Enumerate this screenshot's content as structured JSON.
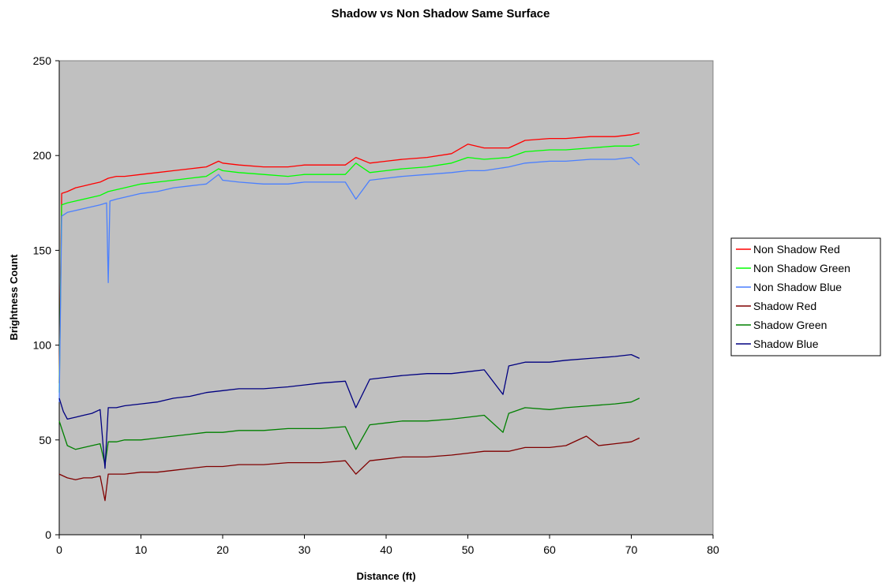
{
  "chart_data": {
    "type": "line",
    "title": "Shadow vs Non Shadow Same Surface",
    "xlabel": "Distance (ft)",
    "ylabel": "Brightness Count",
    "xlim": [
      0,
      80
    ],
    "ylim": [
      0,
      250
    ],
    "x_ticks": [
      0,
      10,
      20,
      30,
      40,
      50,
      60,
      70,
      80
    ],
    "y_ticks": [
      0,
      50,
      100,
      150,
      200,
      250
    ],
    "x_tick_labels": [
      "0",
      "10",
      "20",
      "30",
      "40",
      "50",
      "60",
      "70",
      "80"
    ],
    "y_tick_labels": [
      "0",
      "50",
      "100",
      "150",
      "200",
      "250"
    ],
    "grid": false,
    "plot_background": "#C0C0C0",
    "legend_position": "right",
    "series": [
      {
        "name": "Non Shadow Red",
        "color": "#FF0000",
        "x": [
          0,
          0.3,
          1,
          2,
          3,
          4,
          5,
          6,
          7,
          8,
          10,
          12,
          14,
          16,
          18,
          19.5,
          20,
          22,
          25,
          28,
          30,
          32,
          35,
          36.3,
          38,
          40,
          42,
          45,
          48,
          50,
          52,
          55,
          57,
          60,
          62,
          65,
          68,
          70,
          71
        ],
        "y": [
          80,
          180,
          181,
          183,
          184,
          185,
          186,
          188,
          189,
          189,
          190,
          191,
          192,
          193,
          194,
          197,
          196,
          195,
          194,
          194,
          195,
          195,
          195,
          199,
          196,
          197,
          198,
          199,
          201,
          206,
          204,
          204,
          208,
          209,
          209,
          210,
          210,
          211,
          212
        ]
      },
      {
        "name": "Non Shadow Green",
        "color": "#00FF00",
        "x": [
          0,
          0.3,
          1,
          2,
          3,
          4,
          5,
          6,
          7,
          8,
          10,
          12,
          14,
          16,
          18,
          19.5,
          20,
          22,
          25,
          28,
          30,
          32,
          35,
          36.3,
          38,
          40,
          42,
          45,
          48,
          50,
          52,
          55,
          57,
          60,
          62,
          65,
          68,
          70,
          71
        ],
        "y": [
          75,
          174,
          175,
          176,
          177,
          178,
          179,
          181,
          182,
          183,
          185,
          186,
          187,
          188,
          189,
          193,
          192,
          191,
          190,
          189,
          190,
          190,
          190,
          196,
          191,
          192,
          193,
          194,
          196,
          199,
          198,
          199,
          202,
          203,
          203,
          204,
          205,
          205,
          206
        ]
      },
      {
        "name": "Non Shadow Blue",
        "color": "#4A7FFF",
        "x": [
          0,
          0.3,
          1,
          2,
          3,
          4,
          5,
          5.8,
          6,
          6.2,
          7,
          8,
          10,
          12,
          14,
          16,
          18,
          19.5,
          20,
          22,
          25,
          28,
          30,
          32,
          35,
          36.3,
          38,
          40,
          42,
          45,
          48,
          50,
          52,
          55,
          57,
          60,
          62,
          65,
          68,
          70,
          71
        ],
        "y": [
          70,
          168,
          170,
          171,
          172,
          173,
          174,
          175,
          133,
          176,
          177,
          178,
          180,
          181,
          183,
          184,
          185,
          190,
          187,
          186,
          185,
          185,
          186,
          186,
          186,
          177,
          187,
          188,
          189,
          190,
          191,
          192,
          192,
          194,
          196,
          197,
          197,
          198,
          198,
          199,
          195
        ]
      },
      {
        "name": "Shadow Red",
        "color": "#800000",
        "x": [
          0,
          1,
          2,
          3,
          4,
          5,
          5.6,
          6,
          7,
          8,
          10,
          12,
          14,
          16,
          18,
          20,
          22,
          25,
          28,
          30,
          32,
          35,
          36.3,
          38,
          40,
          42,
          45,
          48,
          50,
          52,
          55,
          57,
          60,
          62,
          64.5,
          66,
          68,
          70,
          71
        ],
        "y": [
          32,
          30,
          29,
          30,
          30,
          31,
          18,
          32,
          32,
          32,
          33,
          33,
          34,
          35,
          36,
          36,
          37,
          37,
          38,
          38,
          38,
          39,
          32,
          39,
          40,
          41,
          41,
          42,
          43,
          44,
          44,
          46,
          46,
          47,
          52,
          47,
          48,
          49,
          51
        ]
      },
      {
        "name": "Shadow Green",
        "color": "#008000",
        "x": [
          0,
          1,
          2,
          3,
          4,
          5,
          5.6,
          6,
          7,
          8,
          10,
          12,
          14,
          16,
          18,
          20,
          22,
          25,
          28,
          30,
          32,
          35,
          36.3,
          38,
          40,
          42,
          45,
          48,
          50,
          52,
          54.3,
          55,
          57,
          60,
          62,
          65,
          68,
          70,
          71
        ],
        "y": [
          60,
          47,
          45,
          46,
          47,
          48,
          37,
          49,
          49,
          50,
          50,
          51,
          52,
          53,
          54,
          54,
          55,
          55,
          56,
          56,
          56,
          57,
          45,
          58,
          59,
          60,
          60,
          61,
          62,
          63,
          54,
          64,
          67,
          66,
          67,
          68,
          69,
          70,
          72
        ]
      },
      {
        "name": "Shadow Blue",
        "color": "#000080",
        "x": [
          0,
          0.5,
          1,
          2,
          3,
          4,
          5,
          5.6,
          6,
          7,
          8,
          10,
          12,
          14,
          16,
          18,
          20,
          22,
          25,
          28,
          30,
          32,
          35,
          36.3,
          38,
          40,
          42,
          45,
          48,
          50,
          52,
          54.3,
          55,
          57,
          60,
          62,
          65,
          68,
          70,
          71
        ],
        "y": [
          72,
          65,
          61,
          62,
          63,
          64,
          66,
          35,
          67,
          67,
          68,
          69,
          70,
          72,
          73,
          75,
          76,
          77,
          77,
          78,
          79,
          80,
          81,
          67,
          82,
          83,
          84,
          85,
          85,
          86,
          87,
          74,
          89,
          91,
          91,
          92,
          93,
          94,
          95,
          93
        ]
      }
    ]
  }
}
